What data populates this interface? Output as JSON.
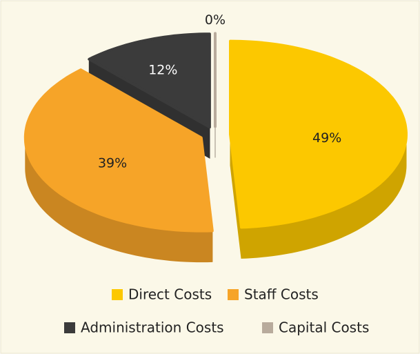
{
  "chart_data": {
    "type": "pie3d",
    "categories": [
      "Direct Costs",
      "Staff Costs",
      "Administration Costs",
      "Capital Costs"
    ],
    "values": [
      49,
      39,
      12,
      0
    ],
    "value_labels": [
      "49%",
      "39%",
      "12%",
      "0%"
    ],
    "colors": [
      "#fcc800",
      "#f6a428",
      "#3b3b3b",
      "#b8ab9c"
    ],
    "legend": "bottom"
  }
}
